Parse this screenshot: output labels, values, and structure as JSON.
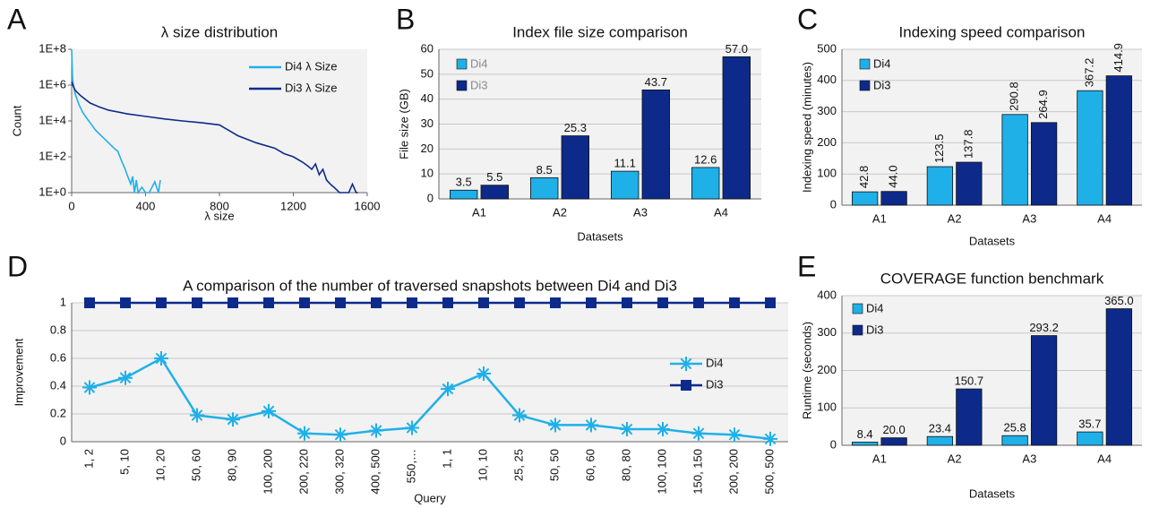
{
  "chart_data": [
    {
      "type": "line",
      "label": "A",
      "title": "λ size distribution",
      "xlabel": "λ size",
      "ylabel": "Count",
      "log_y": true,
      "grid": false,
      "legend": "upper right",
      "xlim": [
        0,
        1600
      ],
      "xticks": [
        0,
        400,
        800,
        1200,
        1600
      ],
      "ylim": [
        1,
        100000000
      ],
      "yticks": [
        {
          "value": 1,
          "label": "1E+0"
        },
        {
          "value": 100,
          "label": "1E+2"
        },
        {
          "value": 10000,
          "label": "1E+4"
        },
        {
          "value": 1000000,
          "label": "1E+6"
        },
        {
          "value": 100000000,
          "label": "1E+8"
        }
      ],
      "series": [
        {
          "name": "Di4 λ Size",
          "color": "#1fb0e8",
          "x": [
            0,
            5,
            10,
            20,
            40,
            60,
            80,
            100,
            130,
            160,
            200,
            230,
            250,
            270,
            290,
            300,
            320,
            330,
            340,
            350,
            360,
            380,
            400,
            420,
            450,
            470,
            480
          ],
          "values": [
            100000000,
            2000000,
            1000000,
            300000,
            80000,
            30000,
            15000,
            8000,
            3000,
            1500,
            600,
            300,
            200,
            60,
            20,
            10,
            3,
            8,
            1,
            5,
            1,
            2,
            1,
            1,
            4,
            1,
            5
          ]
        },
        {
          "name": "Di3 λ Size",
          "color": "#0d2a8a",
          "x": [
            0,
            10,
            20,
            50,
            100,
            150,
            200,
            300,
            400,
            500,
            600,
            700,
            800,
            850,
            900,
            1000,
            1100,
            1150,
            1200,
            1250,
            1280,
            1300,
            1320,
            1340,
            1360,
            1380,
            1400,
            1420,
            1450,
            1480,
            1500,
            1520,
            1540,
            1550
          ],
          "values": [
            1500000,
            800000,
            500000,
            250000,
            100000,
            60000,
            40000,
            25000,
            18000,
            13000,
            10000,
            8000,
            6000,
            3000,
            1500,
            600,
            300,
            150,
            100,
            50,
            30,
            20,
            40,
            10,
            20,
            5,
            3,
            2,
            1,
            1,
            1,
            3,
            1,
            1
          ]
        }
      ]
    },
    {
      "type": "bar",
      "label": "B",
      "title": "Index file size comparison",
      "xlabel": "Datasets",
      "ylabel": "File size (GB)",
      "grid": true,
      "legend": "upper left",
      "categories": [
        "A1",
        "A2",
        "A3",
        "A4"
      ],
      "ylim": [
        0,
        60
      ],
      "yticks": [
        0,
        10,
        20,
        30,
        40,
        50,
        60
      ],
      "series": [
        {
          "name": "Di4",
          "color": "#1fb0e8",
          "values": [
            3.5,
            8.5,
            11.1,
            12.6
          ],
          "value_labels": [
            "3.5",
            "8.5",
            "11.1",
            "12.6"
          ]
        },
        {
          "name": "Di3",
          "color": "#0d2a8a",
          "values": [
            5.5,
            25.3,
            43.7,
            57
          ],
          "value_labels": [
            "5.5",
            "25.3",
            "43.7",
            "57.0"
          ]
        }
      ]
    },
    {
      "type": "bar",
      "label": "C",
      "title": "Indexing speed comparison",
      "xlabel": "Datasets",
      "ylabel": "Indexing speed (minutes)",
      "grid": true,
      "legend": "upper left",
      "categories": [
        "A1",
        "A2",
        "A3",
        "A4"
      ],
      "ylim": [
        0,
        500
      ],
      "yticks": [
        0,
        100,
        200,
        300,
        400,
        500
      ],
      "series": [
        {
          "name": "Di4",
          "color": "#1fb0e8",
          "values": [
            42.8,
            123.5,
            290.8,
            367.2
          ],
          "value_labels": [
            "42.8",
            "123.5",
            "290.8",
            "367.2"
          ]
        },
        {
          "name": "Di3",
          "color": "#0d2a8a",
          "values": [
            44,
            137.8,
            264.9,
            414.9
          ],
          "value_labels": [
            "44.0",
            "137.8",
            "264.9",
            "414.9"
          ]
        }
      ]
    },
    {
      "type": "line",
      "label": "D",
      "title": "A comparison of the number of traversed snapshots between Di4 and Di3",
      "xlabel": "Query",
      "ylabel": "Improvement",
      "grid": true,
      "legend": "center right",
      "categories": [
        "1, 2",
        "5, 10",
        "10, 20",
        "50, 60",
        "80, 90",
        "100, 200",
        "200, 220",
        "300, 320",
        "400, 500",
        "550,…",
        "1, 1",
        "10, 10",
        "25, 25",
        "50, 50",
        "60, 60",
        "80, 80",
        "100, 100",
        "150, 150",
        "200, 200",
        "500, 500"
      ],
      "ylim": [
        0,
        1
      ],
      "yticks": [
        0,
        0.2,
        0.4,
        0.6,
        0.8,
        1
      ],
      "series": [
        {
          "name": "Di4",
          "color": "#1fb0e8",
          "marker": "asterisk",
          "values": [
            0.39,
            0.46,
            0.6,
            0.19,
            0.16,
            0.22,
            0.06,
            0.05,
            0.08,
            0.1,
            0.38,
            0.49,
            0.19,
            0.12,
            0.12,
            0.09,
            0.09,
            0.06,
            0.05,
            0.02
          ]
        },
        {
          "name": "Di3",
          "color": "#0d2a8a",
          "marker": "square",
          "values": [
            1,
            1,
            1,
            1,
            1,
            1,
            1,
            1,
            1,
            1,
            1,
            1,
            1,
            1,
            1,
            1,
            1,
            1,
            1,
            1
          ]
        }
      ]
    },
    {
      "type": "bar",
      "label": "E",
      "title": "COVERAGE function benchmark",
      "xlabel": "Datasets",
      "ylabel": "Runtime (seconds)",
      "grid": true,
      "legend": "upper left",
      "categories": [
        "A1",
        "A2",
        "A3",
        "A4"
      ],
      "ylim": [
        0,
        400
      ],
      "yticks": [
        0,
        100,
        200,
        300,
        400
      ],
      "series": [
        {
          "name": "Di4",
          "color": "#1fb0e8",
          "values": [
            8.4,
            23.4,
            25.8,
            35.7
          ],
          "value_labels": [
            "8.4",
            "23.4",
            "25.8",
            "35.7"
          ]
        },
        {
          "name": "Di3",
          "color": "#0d2a8a",
          "values": [
            20,
            150.7,
            293.2,
            365
          ],
          "value_labels": [
            "20.0",
            "150.7",
            "293.2",
            "365.0"
          ]
        }
      ]
    }
  ]
}
